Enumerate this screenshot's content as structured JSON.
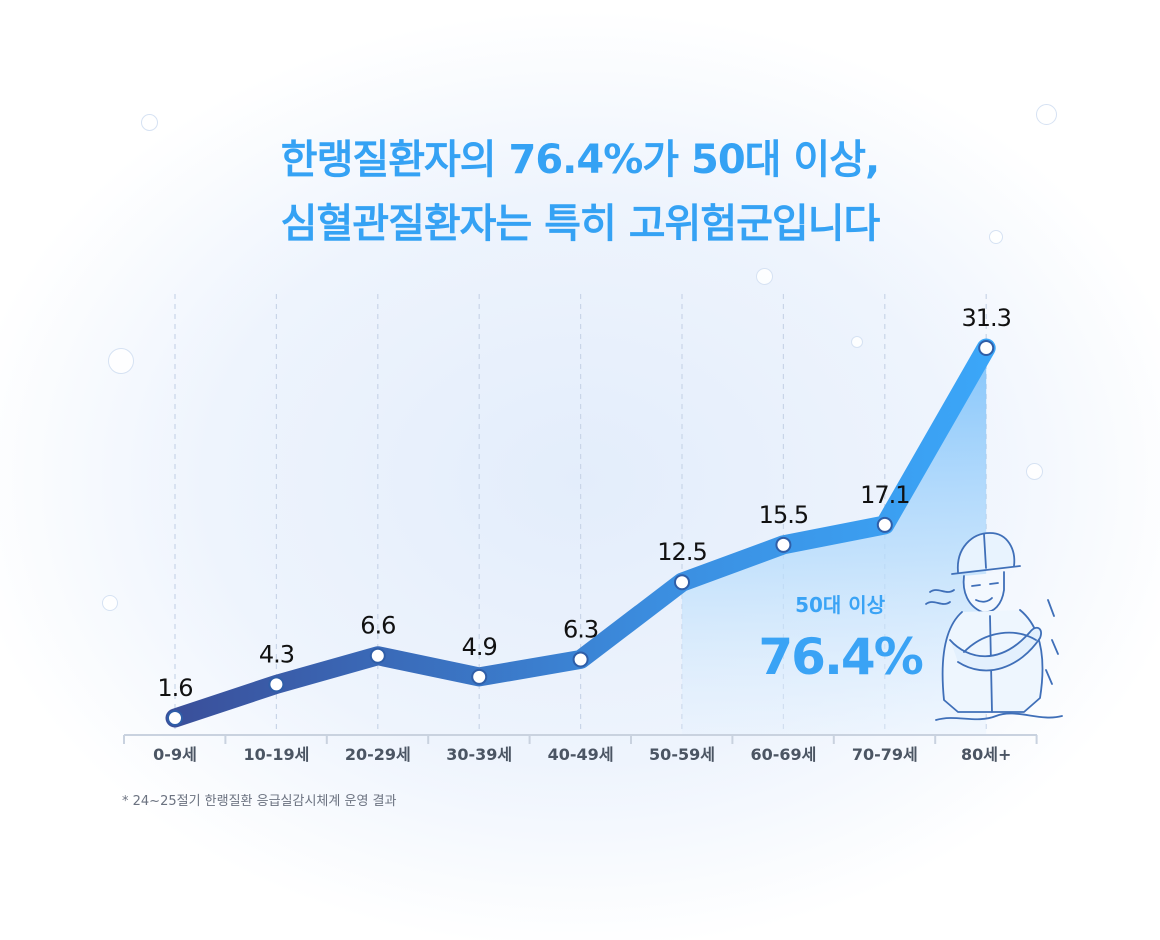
{
  "title": {
    "line1": "한랭질환자의 76.4%가 50대 이상,",
    "line2": "심혈관질환자는 특히 고위험군입니다"
  },
  "chart_data": {
    "type": "line",
    "categories": [
      "0-9세",
      "10-19세",
      "20-29세",
      "30-39세",
      "40-49세",
      "50-59세",
      "60-69세",
      "70-79세",
      "80세+"
    ],
    "values": [
      1.6,
      4.3,
      6.6,
      4.9,
      6.3,
      12.5,
      15.5,
      17.1,
      31.3
    ],
    "value_labels": [
      "1.6",
      "4.3",
      "6.6",
      "4.9",
      "6.3",
      "12.5",
      "15.5",
      "17.1",
      "31.3"
    ],
    "ylim": [
      0,
      31.3
    ],
    "grid": "vertical dashed",
    "highlight": {
      "from_category": "50-59세",
      "label": "50대 이상",
      "value_label": "76.4%"
    },
    "colors": {
      "line_start": "#3a4f9a",
      "line_end": "#3ba6f8",
      "highlight_fill": "#9fd0fb",
      "highlight_text": "#3aa3f5",
      "title": "#35a2f4"
    }
  },
  "illustration": {
    "icon": "cold-worker-icon"
  },
  "footnote": "* 24~25절기 한랭질환 응급실감시체계 운영 결과"
}
